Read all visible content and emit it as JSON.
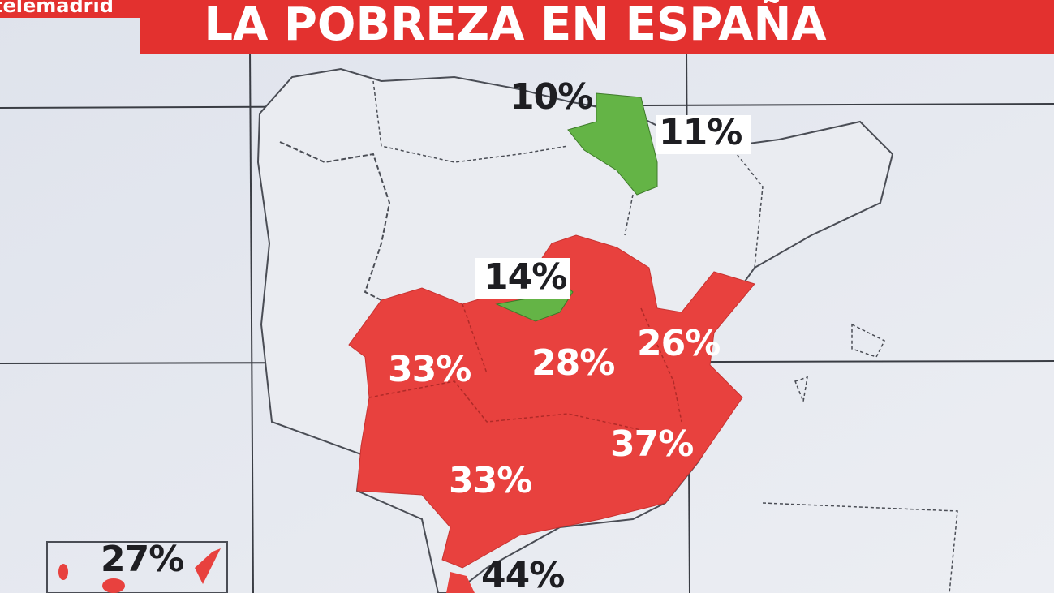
{
  "header": {
    "logo": "telemadrid",
    "title": "LA POBREZA EN ESPAÑA"
  },
  "regions": [
    {
      "label": "10%"
    },
    {
      "label": "11%"
    },
    {
      "label": "14%"
    },
    {
      "label": "33%"
    },
    {
      "label": "28%"
    },
    {
      "label": "26%"
    },
    {
      "label": "37%"
    },
    {
      "label": "33%"
    },
    {
      "label": "44%"
    },
    {
      "label": "27%"
    }
  ]
}
